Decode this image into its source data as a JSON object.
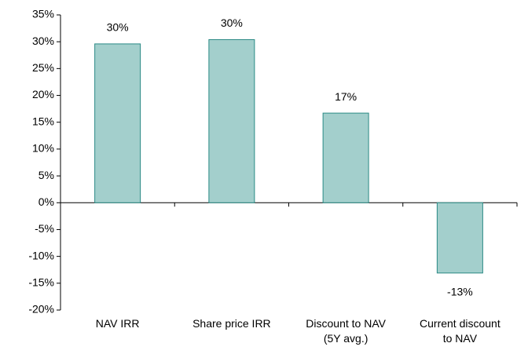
{
  "chart_data": {
    "type": "bar",
    "categories": [
      "NAV IRR",
      "Share price IRR",
      "Discount to NAV\n(5Y avg.)",
      "Current discount\nto NAV"
    ],
    "values": [
      29.6,
      30.4,
      16.7,
      -13.1
    ],
    "value_labels": [
      "30%",
      "30%",
      "17%",
      "-13%"
    ],
    "color": "#a3cfcc",
    "edge_color": "#2a8a85",
    "ylim": [
      -20,
      35
    ],
    "yticks": [
      {
        "value": -20,
        "label": "-20%"
      },
      {
        "value": -15,
        "label": "-15%"
      },
      {
        "value": -10,
        "label": "-10%"
      },
      {
        "value": -5,
        "label": "-5%"
      },
      {
        "value": 0,
        "label": "0%"
      },
      {
        "value": 5,
        "label": "5%"
      },
      {
        "value": 10,
        "label": "10%"
      },
      {
        "value": 15,
        "label": "15%"
      },
      {
        "value": 20,
        "label": "20%"
      },
      {
        "value": 25,
        "label": "25%"
      },
      {
        "value": 30,
        "label": "30%"
      },
      {
        "value": 35,
        "label": "35%"
      }
    ],
    "grid": false
  }
}
